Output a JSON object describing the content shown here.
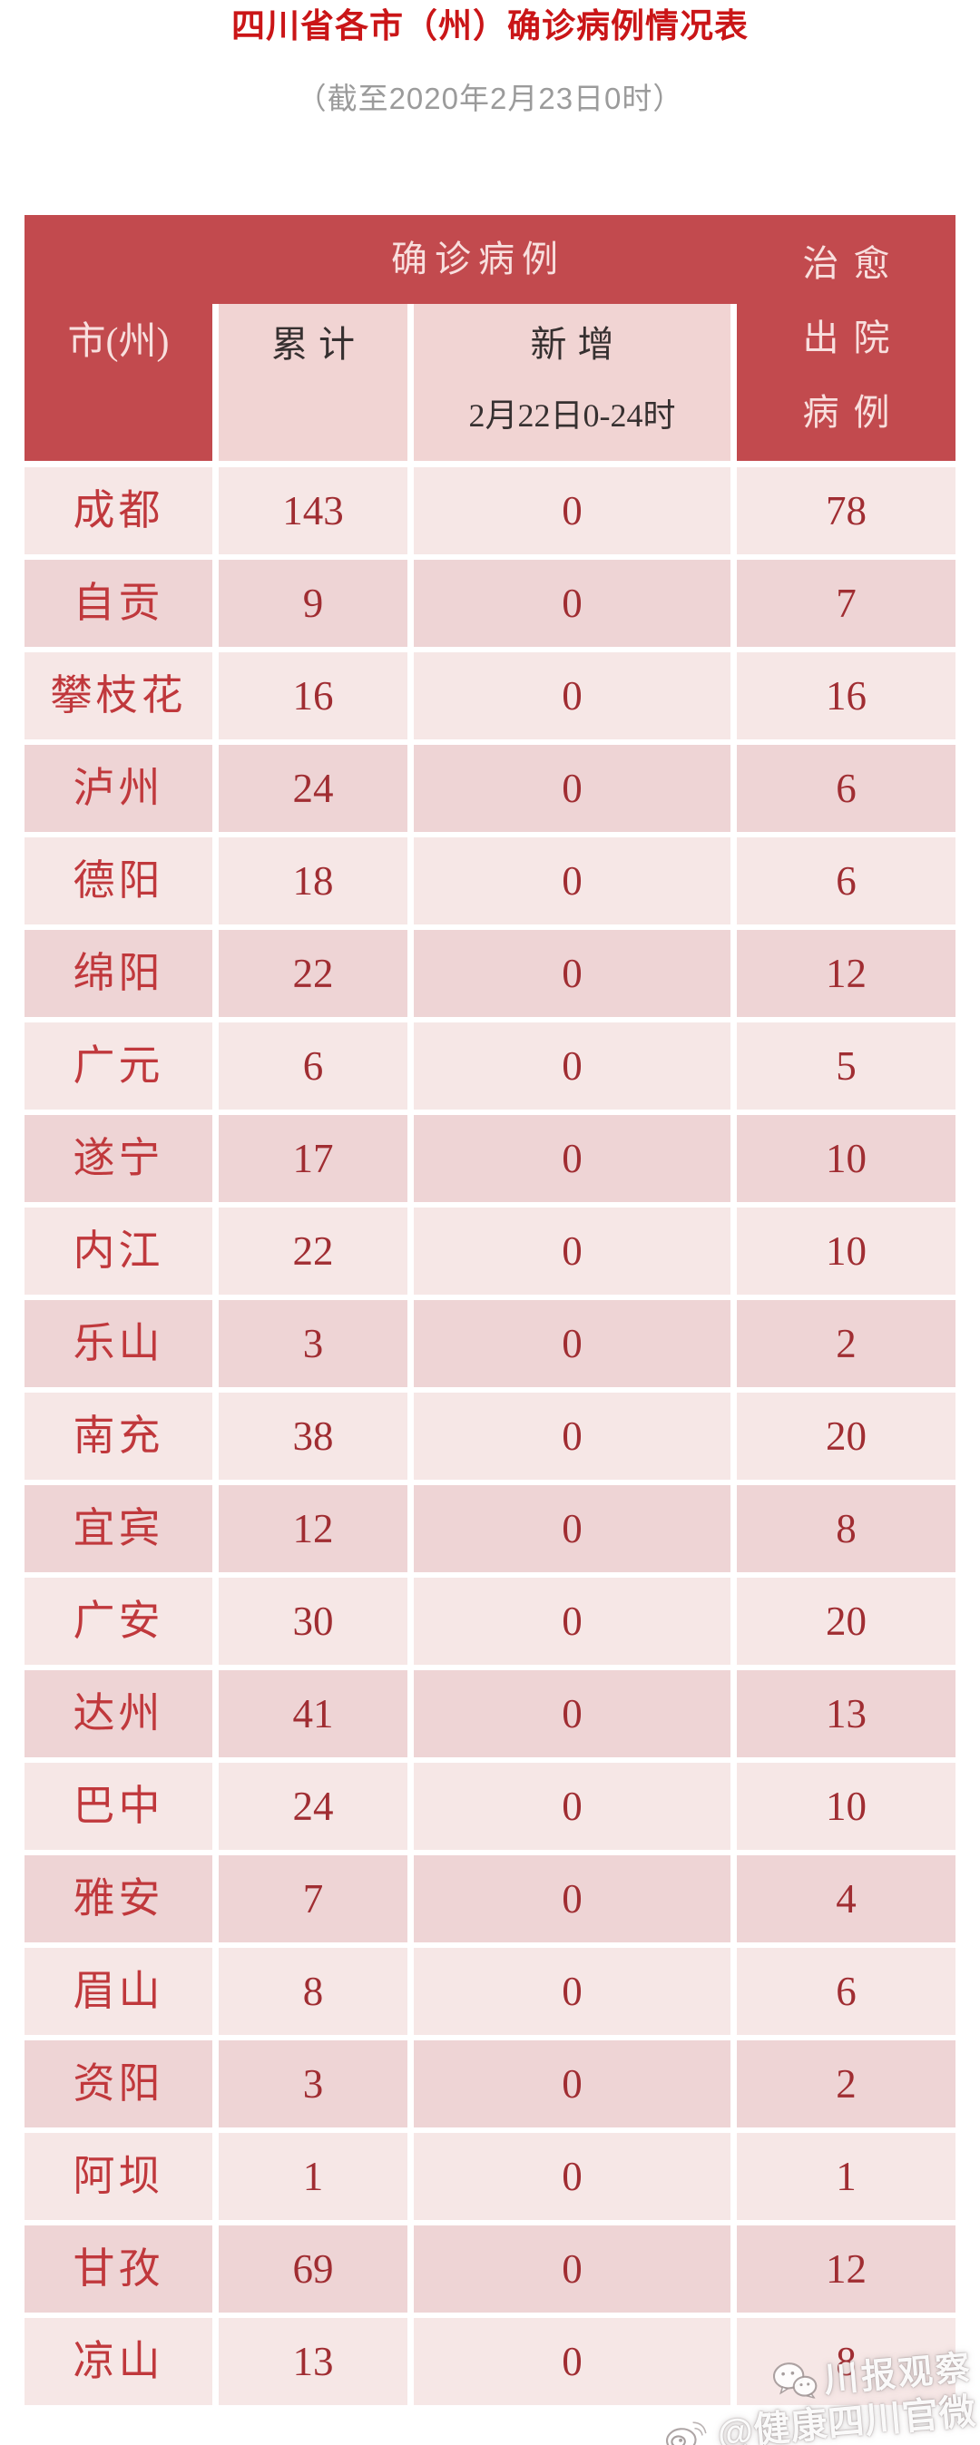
{
  "chart_data": {
    "type": "table",
    "title": "四川省各市（州）确诊病例情况表",
    "subtitle": "（截至2020年2月23日0时）",
    "header": {
      "city": "市(州)",
      "confirmed_group": "确诊病例",
      "cumulative": "累计",
      "new_label": "新增",
      "new_period": "2月22日0-24时",
      "cured_lines": [
        "治愈",
        "出院",
        "病例"
      ]
    },
    "rows": [
      {
        "city": "成都",
        "cumulative": 143,
        "new": 0,
        "cured": 78
      },
      {
        "city": "自贡",
        "cumulative": 9,
        "new": 0,
        "cured": 7
      },
      {
        "city": "攀枝花",
        "cumulative": 16,
        "new": 0,
        "cured": 16
      },
      {
        "city": "泸州",
        "cumulative": 24,
        "new": 0,
        "cured": 6
      },
      {
        "city": "德阳",
        "cumulative": 18,
        "new": 0,
        "cured": 6
      },
      {
        "city": "绵阳",
        "cumulative": 22,
        "new": 0,
        "cured": 12
      },
      {
        "city": "广元",
        "cumulative": 6,
        "new": 0,
        "cured": 5
      },
      {
        "city": "遂宁",
        "cumulative": 17,
        "new": 0,
        "cured": 10
      },
      {
        "city": "内江",
        "cumulative": 22,
        "new": 0,
        "cured": 10
      },
      {
        "city": "乐山",
        "cumulative": 3,
        "new": 0,
        "cured": 2
      },
      {
        "city": "南充",
        "cumulative": 38,
        "new": 0,
        "cured": 20
      },
      {
        "city": "宜宾",
        "cumulative": 12,
        "new": 0,
        "cured": 8
      },
      {
        "city": "广安",
        "cumulative": 30,
        "new": 0,
        "cured": 20
      },
      {
        "city": "达州",
        "cumulative": 41,
        "new": 0,
        "cured": 13
      },
      {
        "city": "巴中",
        "cumulative": 24,
        "new": 0,
        "cured": 10
      },
      {
        "city": "雅安",
        "cumulative": 7,
        "new": 0,
        "cured": 4
      },
      {
        "city": "眉山",
        "cumulative": 8,
        "new": 0,
        "cured": 6
      },
      {
        "city": "资阳",
        "cumulative": 3,
        "new": 0,
        "cured": 2
      },
      {
        "city": "阿坝",
        "cumulative": 1,
        "new": 0,
        "cured": 1
      },
      {
        "city": "甘孜",
        "cumulative": 69,
        "new": 0,
        "cured": 12
      },
      {
        "city": "凉山",
        "cumulative": 13,
        "new": 0,
        "cured": 8
      }
    ],
    "layout": {
      "grid": "off",
      "legend": "none"
    }
  },
  "watermark": {
    "line1": "川报观察",
    "line2": "@健康四川官微",
    "icon1": "wechat-icon",
    "icon2": "weibo-icon"
  },
  "colors": {
    "header_red": "#c24a4e",
    "subheader_pink": "#f1d4d3",
    "row_light": "#f6e7e6",
    "row_dark": "#eed4d5",
    "city_text": "#c0383c",
    "number_text": "#a02d32",
    "title_red": "#ca1517",
    "subtitle_gray": "#9b9b9b",
    "header_text": "#f8dfde"
  }
}
